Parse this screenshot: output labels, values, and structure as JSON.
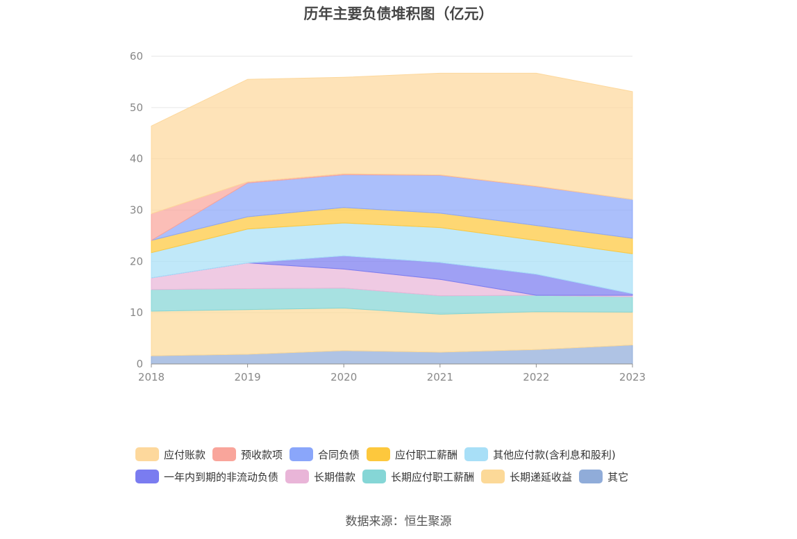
{
  "title": "历年主要负债堆积图（亿元）",
  "source": "数据来源：恒生聚源",
  "chart_data": {
    "type": "area",
    "stacked": true,
    "x": [
      "2018",
      "2019",
      "2020",
      "2021",
      "2022",
      "2023"
    ],
    "ylim": [
      0,
      60
    ],
    "yticks": [
      0,
      10,
      20,
      30,
      40,
      50,
      60
    ],
    "grid": true,
    "legend_position": "bottom",
    "series": [
      {
        "name": "其它",
        "color": "#90acd9",
        "values": [
          1.6,
          1.9,
          2.6,
          2.3,
          2.8,
          3.7
        ]
      },
      {
        "name": "长期递延收益",
        "color": "#fcd998",
        "values": [
          8.7,
          8.7,
          8.3,
          7.4,
          7.4,
          6.4
        ]
      },
      {
        "name": "长期应付职工薪酬",
        "color": "#85d6d6",
        "values": [
          4.2,
          4.1,
          3.9,
          3.6,
          3.2,
          3.0
        ]
      },
      {
        "name": "长期借款",
        "color": "#e9b5d8",
        "values": [
          2.3,
          5.0,
          3.7,
          3.2,
          0.0,
          0.3
        ]
      },
      {
        "name": "一年内到期的非流动负债",
        "color": "#7a7cf0",
        "values": [
          0.0,
          0.0,
          2.6,
          3.3,
          4.1,
          0.3
        ]
      },
      {
        "name": "其他应付款(含利息和股利)",
        "color": "#a8dff7",
        "values": [
          4.9,
          6.6,
          6.4,
          6.8,
          6.6,
          7.8
        ]
      },
      {
        "name": "应付职工薪酬",
        "color": "#fdc83d",
        "values": [
          2.4,
          2.4,
          3.0,
          2.8,
          2.9,
          3.0
        ]
      },
      {
        "name": "合同负债",
        "color": "#8aa6fa",
        "values": [
          0.0,
          6.6,
          6.4,
          7.4,
          7.6,
          7.6
        ]
      },
      {
        "name": "预收款项",
        "color": "#f9a59b",
        "values": [
          5.2,
          0.2,
          0.2,
          0.1,
          0.1,
          0.0
        ]
      },
      {
        "name": "应付账款",
        "color": "#fdd89c",
        "values": [
          17.1,
          20.0,
          18.8,
          19.8,
          22.0,
          21.0
        ]
      }
    ]
  },
  "legend_rows": [
    [
      "应付账款",
      "预收款项",
      "合同负债",
      "应付职工薪酬",
      "其他应付款(含利息和股利)"
    ],
    [
      "一年内到期的非流动负债",
      "长期借款",
      "长期应付职工薪酬",
      "长期递延收益",
      "其它"
    ]
  ]
}
